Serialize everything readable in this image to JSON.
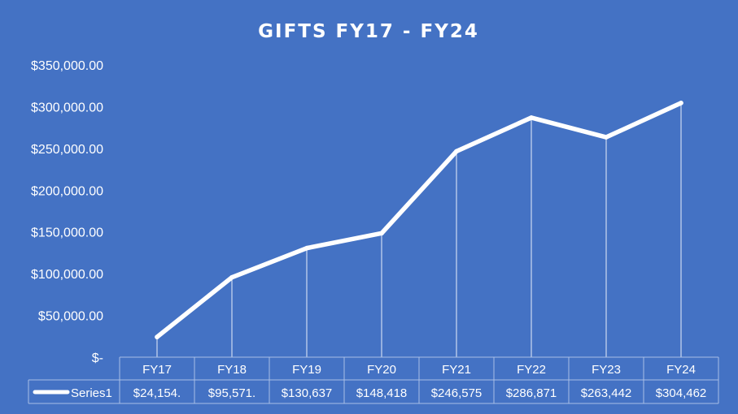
{
  "chart_data": {
    "type": "line",
    "title": "GIFTS FY17 - FY24",
    "categories": [
      "FY17",
      "FY18",
      "FY19",
      "FY20",
      "FY21",
      "FY22",
      "FY23",
      "FY24"
    ],
    "series": [
      {
        "name": "Series1",
        "values": [
          24154,
          95571,
          130637,
          148418,
          246575,
          286871,
          263442,
          304462
        ],
        "table_labels": [
          "$24,154.",
          "$95,571.",
          "$130,637",
          "$148,418",
          "$246,575",
          "$286,871",
          "$263,442",
          "$304,462"
        ]
      }
    ],
    "yticks": [
      {
        "value": 0,
        "label": "$-"
      },
      {
        "value": 50000,
        "label": "$50,000.00"
      },
      {
        "value": 100000,
        "label": "$100,000.00"
      },
      {
        "value": 150000,
        "label": "$150,000.00"
      },
      {
        "value": 200000,
        "label": "$200,000.00"
      },
      {
        "value": 250000,
        "label": "$250,000.00"
      },
      {
        "value": 300000,
        "label": "$300,000.00"
      },
      {
        "value": 350000,
        "label": "$350,000.00"
      }
    ],
    "ylim": [
      0,
      350000
    ],
    "grid": false,
    "legend": "data-table",
    "colors": {
      "background": "#4472c4",
      "line": "#ffffff"
    }
  }
}
